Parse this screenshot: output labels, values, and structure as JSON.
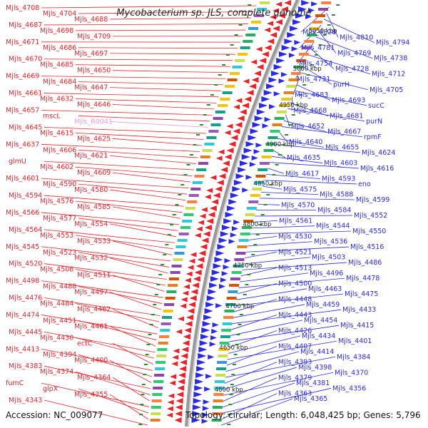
{
  "title": "Mycobacterium sp. JLS, complete genome",
  "accession": "Accession: NC_009077",
  "summary": "Topology: circular; Length: 6,048,425 bp; Genes: 5,796",
  "colors": {
    "forward": "#e8232a",
    "reverse": "#2a2ae6",
    "pseudo": "#ea9cdc",
    "backbone": "#888888",
    "gc_skew_dot": "#2e8b2e"
  },
  "kbp_ticks": [
    "5050 kbp",
    "5000 kbp",
    "4950 kbp",
    "4900 kbp",
    "4850 kbp",
    "4800 kbp",
    "4750 kbp",
    "4700 kbp",
    "4650 kbp",
    "4600 kbp"
  ],
  "left_labels": [
    {
      "t": "Mjls_4708",
      "kind": "gene"
    },
    {
      "t": "Mjls_4704",
      "kind": "gene"
    },
    {
      "t": "Mjls_4688",
      "kind": "gene"
    },
    {
      "t": "Mjls_4687",
      "kind": "gene"
    },
    {
      "t": "Mjls_4698",
      "kind": "gene"
    },
    {
      "t": "Mjls_4709",
      "kind": "gene"
    },
    {
      "t": "Mjls_4671",
      "kind": "gene"
    },
    {
      "t": "Mjls_4686",
      "kind": "gene"
    },
    {
      "t": "Mjls_4697",
      "kind": "gene"
    },
    {
      "t": "Mjls_4670",
      "kind": "gene"
    },
    {
      "t": "Mjls_4685",
      "kind": "gene"
    },
    {
      "t": "Mjls_4650",
      "kind": "gene"
    },
    {
      "t": "Mjls_4669",
      "kind": "gene"
    },
    {
      "t": "Mjls_4684",
      "kind": "gene"
    },
    {
      "t": "Mjls_4647",
      "kind": "gene"
    },
    {
      "t": "Mjls_4661",
      "kind": "gene"
    },
    {
      "t": "Mjls_4632",
      "kind": "gene"
    },
    {
      "t": "Mjls_4646",
      "kind": "gene"
    },
    {
      "t": "Mjls_4657",
      "kind": "gene"
    },
    {
      "t": "mscL",
      "kind": "gene"
    },
    {
      "t": "Mjls_R0041",
      "kind": "pseudo"
    },
    {
      "t": "Mjls_4645",
      "kind": "gene"
    },
    {
      "t": "Mjls_4615",
      "kind": "gene"
    },
    {
      "t": "Mjls_4625",
      "kind": "gene"
    },
    {
      "t": "Mjls_4637",
      "kind": "gene"
    },
    {
      "t": "Mjls_4606",
      "kind": "gene"
    },
    {
      "t": "Mjls_4621",
      "kind": "gene"
    },
    {
      "t": "glmU",
      "kind": "gene"
    },
    {
      "t": "Mjls_4602",
      "kind": "gene"
    },
    {
      "t": "Mjls_4609",
      "kind": "gene"
    },
    {
      "t": "Mjls_4601",
      "kind": "gene"
    },
    {
      "t": "Mjls_4590",
      "kind": "gene"
    },
    {
      "t": "Mjls_4580",
      "kind": "gene"
    },
    {
      "t": "Mjls_4594",
      "kind": "gene"
    },
    {
      "t": "Mjls_4576",
      "kind": "gene"
    },
    {
      "t": "Mjls_4585",
      "kind": "gene"
    },
    {
      "t": "Mjls_4566",
      "kind": "gene"
    },
    {
      "t": "Mjls_4577",
      "kind": "gene"
    },
    {
      "t": "Mjls_4554",
      "kind": "gene"
    },
    {
      "t": "Mjls_4564",
      "kind": "gene"
    },
    {
      "t": "Mjls_4553",
      "kind": "gene"
    },
    {
      "t": "Mjls_4533",
      "kind": "gene"
    },
    {
      "t": "Mjls_4545",
      "kind": "gene"
    },
    {
      "t": "Mjls_4523",
      "kind": "gene"
    },
    {
      "t": "Mjls_4532",
      "kind": "gene"
    },
    {
      "t": "Mjls_4520",
      "kind": "gene"
    },
    {
      "t": "Mjls_4508",
      "kind": "gene"
    },
    {
      "t": "Mjls_4511",
      "kind": "gene"
    },
    {
      "t": "Mjls_4498",
      "kind": "gene"
    },
    {
      "t": "Mjls_4488",
      "kind": "gene"
    },
    {
      "t": "Mjls_4497",
      "kind": "gene"
    },
    {
      "t": "Mjls_4476",
      "kind": "gene"
    },
    {
      "t": "Mjls_4484",
      "kind": "gene"
    },
    {
      "t": "Mjls_4462",
      "kind": "gene"
    },
    {
      "t": "Mjls_4474",
      "kind": "gene"
    },
    {
      "t": "Mjls_4451",
      "kind": "gene"
    },
    {
      "t": "Mjls_4461",
      "kind": "gene"
    },
    {
      "t": "Mjls_4445",
      "kind": "gene"
    },
    {
      "t": "Mjls_4430",
      "kind": "gene"
    },
    {
      "t": "ectC",
      "kind": "gene"
    },
    {
      "t": "Mjls_4413",
      "kind": "gene"
    },
    {
      "t": "Mjls_4394",
      "kind": "gene"
    },
    {
      "t": "Mjls_4400",
      "kind": "gene"
    },
    {
      "t": "Mjls_4383",
      "kind": "gene"
    },
    {
      "t": "Mjls_4374",
      "kind": "gene"
    },
    {
      "t": "Mjls_4364",
      "kind": "gene"
    },
    {
      "t": "fumC",
      "kind": "gene"
    },
    {
      "t": "glpX",
      "kind": "gene"
    },
    {
      "t": "Mjls_4355",
      "kind": "gene"
    },
    {
      "t": "Mjls_4343",
      "kind": "gene"
    }
  ],
  "right_labels": [
    {
      "t": "Mjls_4828"
    },
    {
      "t": "Mjls_4810"
    },
    {
      "t": "Mjls_4794"
    },
    {
      "t": "Mjls_4781"
    },
    {
      "t": "Mjls_4769"
    },
    {
      "t": "Mjls_4738"
    },
    {
      "t": "Mjls_4754"
    },
    {
      "t": "Mjls_4728"
    },
    {
      "t": "Mjls_4712"
    },
    {
      "t": "Mjls_4731"
    },
    {
      "t": "purH"
    },
    {
      "t": "Mjls_4705"
    },
    {
      "t": "Mjls_4683"
    },
    {
      "t": "Mjls_4693"
    },
    {
      "t": "sucC"
    },
    {
      "t": "Mjls_4668"
    },
    {
      "t": "Mjls_4681"
    },
    {
      "t": "purN"
    },
    {
      "t": "Mjls_4652"
    },
    {
      "t": "Mjls_4667"
    },
    {
      "t": "rpmF"
    },
    {
      "t": "Mjls_4640"
    },
    {
      "t": "Mjls_4655"
    },
    {
      "t": "Mjls_4624"
    },
    {
      "t": "Mjls_4635"
    },
    {
      "t": "Mjls_4603"
    },
    {
      "t": "Mjls_4616"
    },
    {
      "t": "Mjls_4617"
    },
    {
      "t": "Mjls_4593"
    },
    {
      "t": "eno"
    },
    {
      "t": "Mjls_4575"
    },
    {
      "t": "Mjls_4588"
    },
    {
      "t": "Mjls_4599"
    },
    {
      "t": "Mjls_4570"
    },
    {
      "t": "Mjls_4584"
    },
    {
      "t": "Mjls_4552"
    },
    {
      "t": "Mjls_4561"
    },
    {
      "t": "Mjls_4544"
    },
    {
      "t": "Mjls_4550"
    },
    {
      "t": "Mjls_4530"
    },
    {
      "t": "Mjls_4536"
    },
    {
      "t": "Mjls_4516"
    },
    {
      "t": "Mjls_4521"
    },
    {
      "t": "Mjls_4503"
    },
    {
      "t": "Mjls_4486"
    },
    {
      "t": "Mjls_4513"
    },
    {
      "t": "Mjls_4496"
    },
    {
      "t": "Mjls_4478"
    },
    {
      "t": "Mjls_4500"
    },
    {
      "t": "Mjls_4463"
    },
    {
      "t": "Mjls_4475"
    },
    {
      "t": "Mjls_4448"
    },
    {
      "t": "Mjls_4459"
    },
    {
      "t": "Mjls_4433"
    },
    {
      "t": "Mjls_4443"
    },
    {
      "t": "Mjls_4454"
    },
    {
      "t": "Mjls_4415"
    },
    {
      "t": "Mjls_4426"
    },
    {
      "t": "Mjls_4434"
    },
    {
      "t": "Mjls_4401"
    },
    {
      "t": "Mjls_4407"
    },
    {
      "t": "Mjls_4414"
    },
    {
      "t": "Mjls_4384"
    },
    {
      "t": "Mjls_4393"
    },
    {
      "t": "Mjls_4398"
    },
    {
      "t": "Mjls_4370"
    },
    {
      "t": "Mjls_4379"
    },
    {
      "t": "Mjls_4381"
    },
    {
      "t": "Mjls_4356"
    },
    {
      "t": "Mjls_4363"
    },
    {
      "t": "Mjls_4365"
    }
  ]
}
